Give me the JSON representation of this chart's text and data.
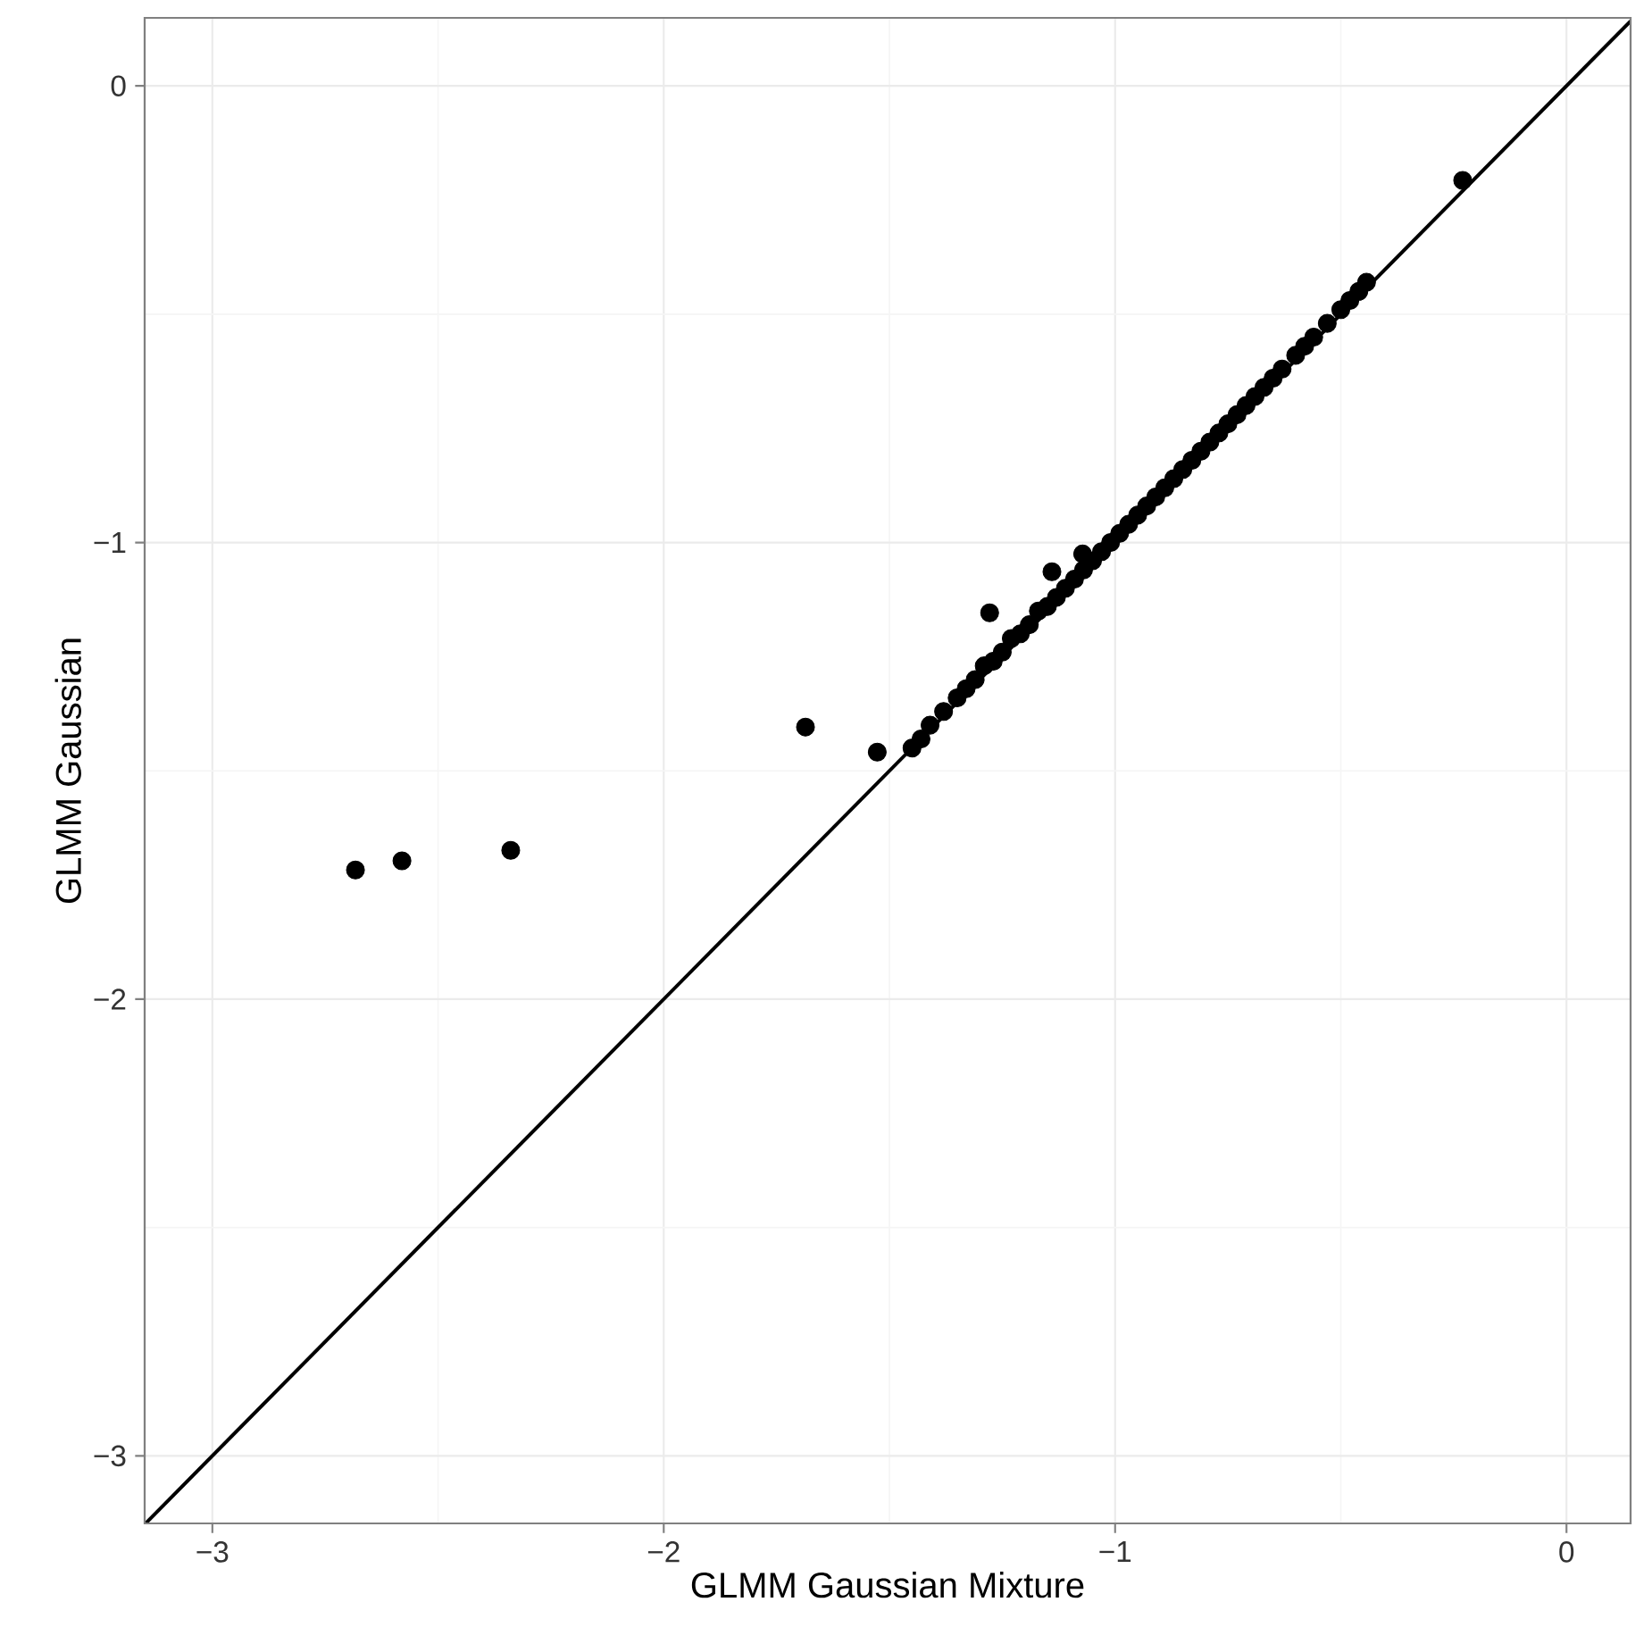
{
  "chart_data": {
    "type": "scatter",
    "xlabel": "GLMM Gaussian Mixture",
    "ylabel": "GLMM Gaussian",
    "xlim": [
      -3.15,
      0.142
    ],
    "ylim": [
      -3.148,
      0.149
    ],
    "xticks": [
      {
        "value": -3,
        "label": "−3"
      },
      {
        "value": -2,
        "label": "−2"
      },
      {
        "value": -1,
        "label": "−1"
      },
      0
    ],
    "yticks": [
      {
        "value": -3,
        "label": "−3"
      },
      {
        "value": -2,
        "label": "−2"
      },
      {
        "value": -1,
        "label": "−1"
      },
      0
    ],
    "grid": true,
    "series": [
      {
        "marker": "circle",
        "color": "#000000",
        "x": [
          -2.683,
          -2.58,
          -2.339,
          -1.686,
          -1.527,
          -1.278,
          -1.14,
          -1.072,
          -0.23,
          -1.45,
          -1.43,
          -1.41,
          -1.38,
          -1.35,
          -1.33,
          -1.31,
          -1.29,
          -1.27,
          -1.25,
          -1.23,
          -1.21,
          -1.19,
          -1.17,
          -1.15,
          -1.13,
          -1.11,
          -1.09,
          -1.07,
          -1.05,
          -1.03,
          -1.01,
          -0.99,
          -0.97,
          -0.95,
          -0.93,
          -0.91,
          -0.89,
          -0.87,
          -0.85,
          -0.83,
          -0.81,
          -0.79,
          -0.77,
          -0.75,
          -0.73,
          -0.71,
          -0.69,
          -0.67,
          -0.65,
          -0.63,
          -0.6,
          -0.58,
          -0.56,
          -0.53,
          -0.5,
          -0.48,
          -0.46,
          -0.443
        ],
        "values": [
          -1.717,
          -1.697,
          -1.674,
          -1.404,
          -1.459,
          -1.154,
          -1.064,
          -1.025,
          -0.207,
          -1.45,
          -1.43,
          -1.4,
          -1.37,
          -1.34,
          -1.32,
          -1.3,
          -1.27,
          -1.26,
          -1.24,
          -1.21,
          -1.2,
          -1.18,
          -1.15,
          -1.14,
          -1.12,
          -1.1,
          -1.08,
          -1.06,
          -1.04,
          -1.02,
          -1.0,
          -0.98,
          -0.96,
          -0.94,
          -0.92,
          -0.9,
          -0.88,
          -0.86,
          -0.84,
          -0.82,
          -0.8,
          -0.78,
          -0.76,
          -0.74,
          -0.72,
          -0.7,
          -0.68,
          -0.66,
          -0.64,
          -0.62,
          -0.59,
          -0.57,
          -0.55,
          -0.52,
          -0.49,
          -0.47,
          -0.45,
          -0.43
        ]
      },
      {
        "type": "line",
        "color": "#000000",
        "line_style": "solid",
        "marker": "none",
        "x": [
          -3.148,
          0.142
        ],
        "values": [
          -3.148,
          0.142
        ]
      }
    ]
  }
}
